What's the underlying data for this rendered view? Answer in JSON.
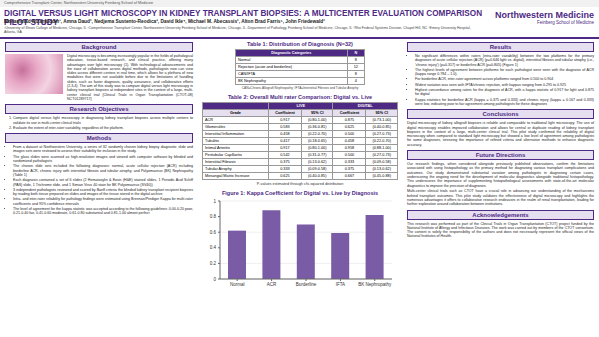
{
  "header": {
    "institution": "Comprehensive Transplant Center, Northwestern University Feinberg School of Medicine",
    "logo": "Northwestern Medicine",
    "logo_subtitle": "Feinberg School of Medicine",
    "title": "DIGITAL VERSUS LIGHT MICROSCOPY IN KIDNEY TRANSPLANT BIOPSIES: A MULTICENTER EVALUATION COMPARISON PILOT STUDY",
    "authors": "Mohammad Nizamuddin¹, Amna Daud², Nedjema Sustento-Reodica³, David Ikle⁴, Michael M. Abecassis², Alton Brad Farris⁵, John Friedewald²",
    "affiliations": "¹University of Illinois College of Medicine, Chicago, IL ²Comprehensive Transplant Center, Northwestern University Feinberg School of Medicine, Chicago, IL ³Department of Pathology, Feinberg School of Medicine, Chicago, IL ⁴Rho Federal Systems Division, Chapel Hill, NC ⁵Emory University Hospital, Atlanta, GA"
  },
  "background": {
    "title": "Background",
    "text": "Digital microscopy is becoming increasingly popular in the fields of pathological education, tissue-based research, and clinical practice, offering many advantages over light microscopy (1). With technological advancements and the ease of collaboration across digital methods, pathologists now can view slides across different centers in real time, which allows for a plethora of new modalities that were not available before due to the limitations of handling slides, such as faster diagnosis, quality assurance, and collaborative efforts (2,3,4). The aim of this study was to compare digital versus light microscopy in kidney transplant biopsies at independent sites in the context of a large, multi-center clinical trial [Clinical Trials in Organ Transplantation (CTOT-08) NCT01289717]"
  },
  "objectives": {
    "title": "Research Objectives",
    "items": [
      "Compare digital versus light microscopy in diagnosing kidney transplant biopsies across multiple centers to validate its use in multi-center clinical trials",
      "Evaluate the extent of inter-rater variability, regardless of the platform."
    ]
  },
  "methods": {
    "title": "Methods",
    "items": [
      "From a dataset at Northwestern University, a series of 32 randomly chosen kidney biopsy diagnostic slide and images sets were reviewed to assess their suitability for inclusion in the study.",
      "The glass slides were scanned as high-resolution images and viewed with computer software by blinded and randomized pathologists",
      "The chosen slide sets included the following diagnoses: normal, acute cellular rejection (ACR) including borderline ACR, chronic injury with interstitial fibrosis and tubular atrophy, and Polyomavirus (BK) Nephropathy (Table 1)",
      "Each diagnosis contained a set of 6 slides (2 Hematoxylin & Eosin (H&E) stained slides, 1 Periodic Acid Schiff (PAS) slide, 1 Trichrome slide, and 1 Simian Virus 40 stain for BK Polyomavirus (SV40))",
      "3 independent pathologists reviewed and scored by Banff criteria the blinded kidney transplant recipient biopsies by reading both tissue prepared on slides and images of the tissue stored in the digital archive",
      "Intra- and inter-rater reliability for pathology findings were estimated using Brennan/Prediger Kappa for multi-rater coefficients and 95% confidence intervals",
      "The level of agreement for the kappa statistic was accepted according to the following guidelines: 0.00-0.20 poor, 0.21-0.40 fair, 0.41-0.60 moderate, 0.61-0.80 substantial and 0.81-1.00 almost perfect"
    ]
  },
  "table1": {
    "title": "Table 1: Distribution of Diagnosis (N=32)",
    "columns": [
      "Diagnostic Categories",
      "N"
    ],
    "rows": [
      [
        "Normal",
        "8"
      ],
      [
        "Rejection (acute and borderline)",
        "12"
      ],
      [
        "CAN/IFTA",
        "8"
      ],
      [
        "BK Nephropathy",
        "4"
      ]
    ],
    "note": "CAN=Chronic Allograft Nephropathy; IFTA=Interstitial Fibrosis and Tubular Atrophy"
  },
  "table2": {
    "title": "Table 2: Overall Multi rater Comparison: Digital vs. Live",
    "groups": [
      "LIVE",
      "DIGITAL"
    ],
    "columns": [
      "Grade",
      "Coefficient",
      "95% CI",
      "Coefficient",
      "95% CI"
    ],
    "rows": [
      [
        "ACR",
        "0.917",
        "(0.80-1.00)",
        "0.875",
        "(0.73-1.00)"
      ],
      [
        "Glomerulitis",
        "0.583",
        "(0.36-0.81)",
        "0.625",
        "(0.40-0.85)"
      ],
      [
        "Interstitial Inflammation",
        "0.458",
        "(0.22-0.70)",
        "0.500",
        "(0.27-0.73)"
      ],
      [
        "Tubulitis",
        "0.417",
        "(0.18-0.65)",
        "0.458",
        "(0.22-0.70)"
      ],
      [
        "Intimal Arteritis",
        "0.917",
        "(0.80-1.00)",
        "0.958",
        "(0.88-1.00)"
      ],
      [
        "Peritubular Capillaritis",
        "0.542",
        "(0.31-0.77)",
        "0.500",
        "(0.27-0.73)"
      ],
      [
        "Interstitial Fibrosis",
        "0.375",
        "(0.13-0.62)",
        "0.333",
        "(0.09-0.58)"
      ],
      [
        "Tubular Atrophy",
        "0.333",
        "(0.09-0.58)",
        "0.375",
        "(0.13-0.62)"
      ],
      [
        "Mesangial Matrix Increase",
        "0.625",
        "(0.40-0.85)",
        "0.667",
        "(0.45-0.88)"
      ]
    ],
    "note": "P-values estimated through chi-squared distribution"
  },
  "results": {
    "title": "Results",
    "items": [
      "No significant differences within raters (intra-rater variability) between the two platforms for the primary diagnoses of acute cellular rejection (ACR) (p=0.646 light vs. digital), interstitial fibrosis and tubular atrophy (i.e., 'chronic injury') (p=0.317) or borderline ACR (p=0.805) (Figure 1)",
      "The highest levels of agreement between platforms for each pathologist were seen with the diagnosis of ACR (kappa range 0.784 – 1.0).",
      "For borderline ACR, inter-rater agreement across platforms ranged from 0.500 to 0.904",
      "Widest variation was seen with IFTA/chronic rejection, with kappas ranging from 0.295 to 0.925",
      "Highest concordance among raters for the diagnosis of ACR, with a kappa statistic of 0.917 for light and 0.875 for digital",
      "Kappa statistics for borderline ACR (kappa = 0.375 and 0.333) and chronic injury (kappa = 0.167 and 0.333) were low, indicating poor to fair agreement among pathologists for these diagnoses"
    ]
  },
  "conclusions": {
    "title": "Conclusions",
    "text": "Digital microscopy of kidney allograft biopsies is reliable and comparable to traditional light microscopy. The use of digital microscopy enables improved collaboration and allows for central or duplicate reading of kidney transplant biopsies in the context of a large, multi-center clinical trial. This pilot study confirmed the reliability of digital microscopy when compared to standard light microscopy but showed a low level of agreement among pathologists for some diagnoses, stressing the importance of refined criteria and alternative methods to enhance diagnostic accuracy."
  },
  "future": {
    "title": "Future Directions",
    "paragraphs": [
      "Our research findings, when considered alongside previously published observations, confirm the limitations associated with using histopathology as the primary method for diagnosing various transplant complications and outcomes. Our study demonstrated substantial variation among pathologists in diagnosing certain cases, underscoring the ongoing need for the development of molecular diagnostics alongside traditional histopathology. This underscores the importance of supplementing histopathological assessments with state-of-the-art molecular diagnostics to improve the precision of diagnoses.",
      "Multi-center clinical trials such as CTOT have a crucial role in advancing our understanding of the mechanisms behind transplant outcomes. This pilot study validates the effectiveness of digital microscopy and highlights the numerous advantages it offers to collaborative research endeavors in the realm of renal transplantation, leading for further exploration around collaboration between institutions."
    ]
  },
  "acknowledgements": {
    "title": "Acknowledgements",
    "text": "This research was performed as part of the Clinical Trials in Organ Transplantation (CTOT) project funded by the National Institute of Allergy and Infectious Diseases. The work was carried out by members of the CTOT consortium. The content is solely the responsibility of the authors and does not necessarily represent the official views of the National Institutes of Health."
  },
  "chart_data": {
    "type": "bar",
    "title": "Figure 1: Kappa Coefficient for Digital vs. Live by Diagnosis",
    "categories": [
      "Normal",
      "ACR",
      "Borderline",
      "IFTA",
      "BK Nephropathy"
    ],
    "values": [
      0.62,
      0.88,
      0.7,
      0.59,
      0.82
    ],
    "color": "#7a5ba6",
    "ylim": [
      0,
      1
    ],
    "yticks": [
      0,
      0.2,
      0.4,
      0.6,
      0.8,
      1
    ],
    "grid": true
  }
}
